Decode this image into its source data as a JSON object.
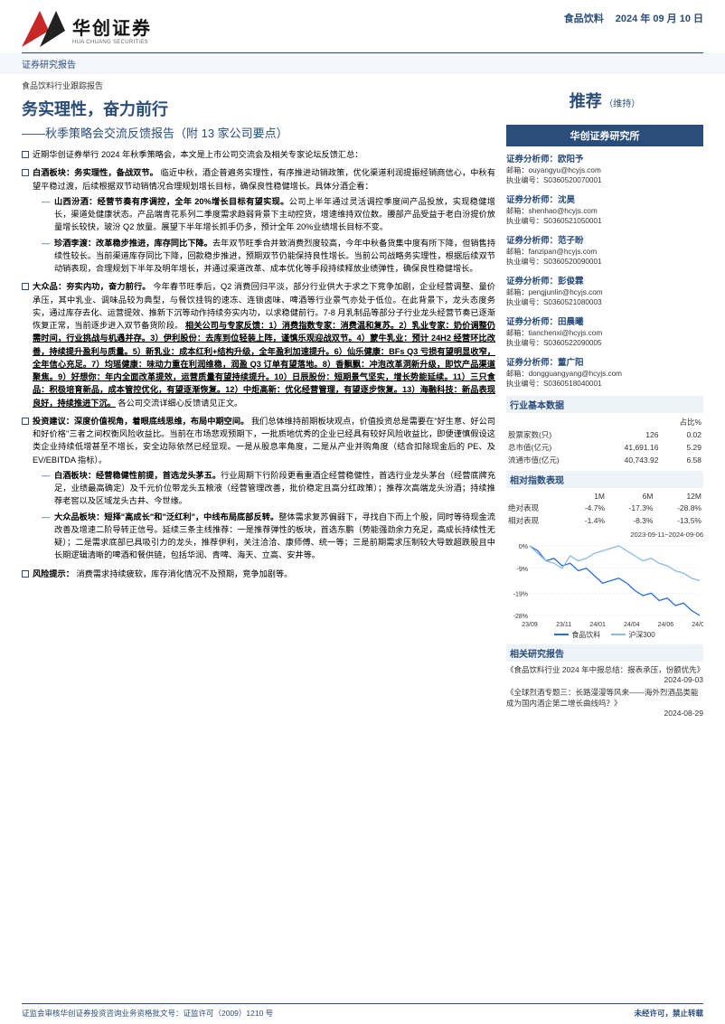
{
  "header": {
    "logo_cn": "华创证券",
    "logo_en": "HUA CHUANG SECURITIES",
    "report_series": "证券研究报告",
    "sector": "食品饮料",
    "date": "2024 年 09 月 10 日"
  },
  "title": {
    "report_type": "食品饮料行业跟踪报告",
    "main": "务实理性，奋力前行",
    "sub": "——秋季策略会交流反馈报告（附 13 家公司要点）"
  },
  "bullets": {
    "b1": "近期华创证券举行 2024 年秋季策略会，本文是上市公司交流会及相关专家论坛反馈汇总：",
    "b2_head": "白酒板块：务实理性，备战双节。",
    "b2_body": "临近中秋，酒企普遍务实理性，有序推进动销政策，优化渠道利润提振经销商信心，中秋有望平稳过渡，后续根据双节动销情况合理规划增长目标，确保良性稳健增长。具体分酒企看：",
    "b2_s1_h": "山西汾酒：经营节奏有序调控，全年 20%增长目标有望实现。",
    "b2_s1_b": "公司上半年通过灵活调控季度间产品投放，实现稳健增长，渠道处健康状态。产品端青花系列二季度需求趋弱背景下主动控货，增速维持双位数。腰部产品受益于老白汾提价放量增长较快，玻汾 Q2 放量。展望下半年增长抓手仍多，预计全年 20%业绩增长目标不变。",
    "b2_s2_h": "珍酒李渡：改革稳步推进，库存同比下降。",
    "b2_s2_b": "去年双节旺季合并致消费烈度较高，今年中秋备货集中度有所下降，但销售持续性较长。当前渠道库存同比下降，回款稳步推进，预期双节仍能保持良性增长。当前公司战略务实理性，根据后续双节动销表现，合理规划下半年及明年增长，并通过渠道改革、成本优化等手段持续释放业绩弹性，确保良性稳健增长。",
    "b3_head": "大众品：夯实内功，奋力前行。",
    "b3_body": "今年春节旺季后，Q2 消费回归平淡，部分行业供大于求之下竞争加剧，企业经营调整、量价承压，其中乳业、调味品较为典型，与餐饮挂钩的速冻、连锁卤味、啤酒等行业景气亦处于低位。在此背景下，龙头态度务实，通过库存去化、运营提效、推新下沉等动作持续夯实内功，以求稳健前行。7-8 月乳制品等部分子行业龙头经营节奏已逐渐恢复正常，当前逐步进入双节备货阶段。",
    "b3_links": "相关公司与专家反馈：1）消费指数专家：消费温和复苏。2）乳业专家：奶价调整仍需时间，行业挑战与机遇并存。3）伊利股份：去库到位轻装上阵，谨慎乐观迎战双节。4）蒙牛乳业：预计 24H2 经营环比改善，持续提升盈利与质量。5）新乳业：成本红利+结构升级，全年盈利加速提升。6）仙乐健康：BFs Q3 亏损有望明显收窄，全年信心充足。7）均瑶健康：味动力重在利润维稳，润盈 Q3 订单有望落地。8）香飘飘：冲泡改革洞新升级，即饮产品渠道聚焦。9）好想你：年内全面改革提效，运营质量有望持续提升。10）日辰股份：短期景气坚实，增长势能延续。11）三只食品：积极培育新品，成本管控优化，有望逐渐恢复。12）中炬高新：优化经营管理，有望逐步恢复。13）海融科技：新品表现良好，持续推进下沉。",
    "b3_tail": "各公司交流详细心反馈请见正文。",
    "b4_head": "投资建议：深度价值视角，着眼底线思维，布局中期空间。",
    "b4_body": "我们总体维持前期板块观点，价值投资总是需要在\"好生意、好公司和好价格\"三者之间权衡风险收益比。当前在市场悲观预期下，一批质地优秀的企业已经具有较好风险收益比，即便谨慎假设这类企业持续低增甚至不增长，安全边际依然已经显现。一是从股息率角度，二是从产业并购角度（结合扣除现金后的 PE、及 EV/EBITDA 指标）。",
    "b4_s1_h": "白酒板块：经营稳健性前提，首选龙头茅五。",
    "b4_s1_b": "行业周期下行阶段更看重酒企经营稳健性，首选行业龙头茅台（经营底牌充足，业绩最高确定）及千元价位带龙头五粮液（经营管理改善，批价稳定且高分红政策）；推荐次高端龙头汾酒；持续推荐老窖以及区域龙头古井、今世缘。",
    "b4_s2_h": "大众品板块：短择\"高成长\"和\"泛红利\"，中线布局底部反转。",
    "b4_s2_b": "整体需求复苏偏弱下，寻找自下而上个股，同时等待现金流改善及增速二阶导转正信号。延续三条主线推荐：一是推荐弹性的板块，首选东鹏（势能强劲余力充足，高成长持续性无疑）；二是需求底部已具吸引力的龙头，推荐伊利，关注洽洽、康师傅、统一等；三是前期需求压制较大导致超跌股且中长期逻辑清晰的啤酒和餐供链，包括华润、青啤、海天、立高、安井等。",
    "b5_head": "风险提示：",
    "b5_body": "消费需求持续疲软，库存消化情况不及预期，竞争加剧等。"
  },
  "sidebar": {
    "rating": "推荐",
    "rating_note": "（维持）",
    "institute": "华创证券研究所",
    "analysts": [
      {
        "title": "证券分析师：欧阳予",
        "email": "邮箱：ouyangyu@hcyjs.com",
        "code": "执业编号：S0360520070001"
      },
      {
        "title": "证券分析师：沈昊",
        "email": "邮箱：shenhao@hcyjs.com",
        "code": "执业编号：S0360521050001"
      },
      {
        "title": "证券分析师：范子盼",
        "email": "邮箱：fanzipan@hcyjs.com",
        "code": "执业编号：S0360520090001"
      },
      {
        "title": "证券分析师：彭俊霖",
        "email": "邮箱：pengjunlin@hcyjs.com",
        "code": "执业编号：S0360521080003"
      },
      {
        "title": "证券分析师：田晨曦",
        "email": "邮箱：tianchenxi@hcyjs.com",
        "code": "执业编号：S0360522090005"
      },
      {
        "title": "证券分析师：董广阳",
        "email": "邮箱：dongguangyang@hcyjs.com",
        "code": "执业编号：S0360518040001"
      }
    ],
    "basic_data_title": "行业基本数据",
    "basic_data": {
      "hdr": [
        "",
        "",
        "占比%"
      ],
      "rows": [
        [
          "股票家数(只)",
          "126",
          "0.02"
        ],
        [
          "总市值(亿元)",
          "41,691.16",
          "5.29"
        ],
        [
          "流通市值(亿元)",
          "40,743.92",
          "6.58"
        ]
      ]
    },
    "index_title": "相对指数表现",
    "index_perf": {
      "hdr": [
        "",
        "1M",
        "6M",
        "12M"
      ],
      "rows": [
        [
          "绝对表现",
          "-4.7%",
          "-17.3%",
          "-28.8%"
        ],
        [
          "相对表现",
          "-1.4%",
          "-8.3%",
          "-13.5%"
        ]
      ]
    },
    "chart": {
      "date_range": "2023-09-11~2024-09-06",
      "y_ticks": [
        "0%",
        "-9%",
        "-19%",
        "-28%"
      ],
      "x_ticks": [
        "23/09",
        "23/11",
        "24/01",
        "24/04",
        "24/06",
        "24/09"
      ],
      "series": [
        {
          "name": "食品饮料",
          "color": "#2a6fd6",
          "points": [
            0,
            -2,
            -6,
            -5,
            -8,
            -7,
            -10,
            -9,
            -12,
            -15,
            -14,
            -13,
            -15,
            -18,
            -20,
            -19,
            -22,
            -21,
            -24,
            -23,
            -26,
            -28
          ]
        },
        {
          "name": "沪深300",
          "color": "#8fb7e8",
          "points": [
            0,
            -3,
            -6,
            -7,
            -9,
            -4,
            -6,
            -5,
            -3,
            -2,
            -1,
            0,
            -2,
            -4,
            -6,
            -5,
            -7,
            -8,
            -10,
            -11,
            -13,
            -14
          ]
        }
      ]
    },
    "related_title": "相关研究报告",
    "related": [
      {
        "title": "《食品饮料行业 2024 年中报总结：报表承压，份额优先》",
        "date": "2024-09-03"
      },
      {
        "title": "《全球烈酒专题三：长路漫漫等风来——海外烈酒品类能成为国内酒企第二增长曲线吗？》",
        "date": "2024-08-29"
      }
    ]
  },
  "footer": {
    "left": "证监会审核华创证券投资咨询业务资格批文号：证监许可（2009）1210 号",
    "right": "未经许可，禁止转载"
  }
}
